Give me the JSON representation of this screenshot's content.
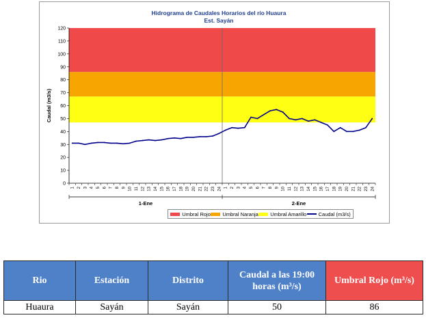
{
  "chart_data": {
    "type": "line",
    "title": "Hidrograma de Caudales Horarios del río Huaura",
    "subtitle": "Est. Sayán",
    "xlabel": "",
    "ylabel": "Caudal (m3/s)",
    "ylim": [
      0,
      120
    ],
    "yticks": [
      "0",
      "10",
      "20",
      "30",
      "40",
      "50",
      "60",
      "70",
      "80",
      "90",
      "100",
      "110",
      "120"
    ],
    "day_groups": [
      {
        "label": "1-Ene",
        "hours": [
          "1",
          "2",
          "3",
          "4",
          "5",
          "6",
          "7",
          "8",
          "9",
          "10",
          "11",
          "12",
          "13",
          "14",
          "15",
          "16",
          "17",
          "18",
          "19",
          "20",
          "21",
          "22",
          "23",
          "24"
        ]
      },
      {
        "label": "2-Ene",
        "hours": [
          "1",
          "2",
          "3",
          "4",
          "5",
          "6",
          "7",
          "8",
          "9",
          "10",
          "11",
          "12",
          "13",
          "14",
          "15",
          "16",
          "17",
          "18",
          "19",
          "20",
          "21",
          "22",
          "23",
          "24"
        ]
      }
    ],
    "bands": [
      {
        "name": "Umbral Rojo",
        "from": 86,
        "to": 120,
        "color": "#f0494a"
      },
      {
        "name": "Umbral Naranja",
        "from": 67,
        "to": 86,
        "color": "#f7a500"
      },
      {
        "name": "Umbral Amarillo",
        "from": 47,
        "to": 67,
        "color": "#ffff14"
      }
    ],
    "series": [
      {
        "name": "Caudal (m3/s)",
        "color": "#00008b",
        "values": [
          31,
          31,
          30,
          31,
          31.5,
          31.5,
          31,
          31,
          30.5,
          31,
          32.5,
          33,
          33.5,
          33,
          33.5,
          34.5,
          35,
          34.5,
          35.5,
          35.5,
          36,
          36,
          36.5,
          38.5,
          41,
          43,
          42.5,
          43,
          51,
          50,
          53,
          56,
          57,
          55,
          50,
          49,
          50,
          48,
          49,
          47,
          45,
          40,
          43,
          40,
          40,
          41,
          43,
          50
        ]
      }
    ],
    "grid": false,
    "legend": "bottom"
  },
  "legend_labels": [
    "Umbral Rojo",
    "Umbral Naranja",
    "Umbral Amarillo",
    "Caudal (m3/s)"
  ],
  "table": {
    "headers": [
      "Rio",
      "Estación",
      "Distrito",
      "Caudal a las 19:00 horas (m³/s)",
      "Umbral Rojo (m³/s)"
    ],
    "row": [
      "Huaura",
      "Sayán",
      "Sayán",
      "50",
      "86"
    ]
  }
}
